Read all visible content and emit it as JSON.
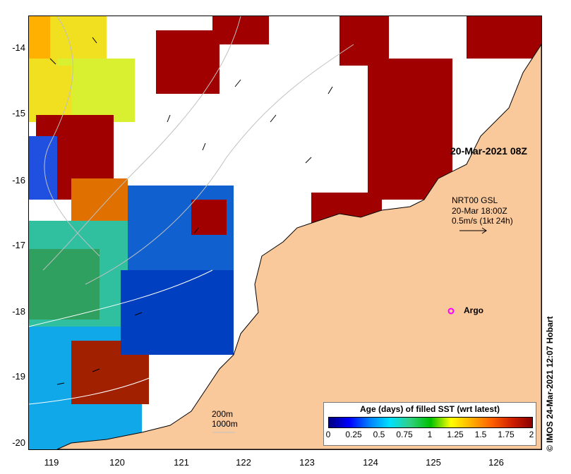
{
  "y_ticks": [
    "-14",
    "-15",
    "-16",
    "-17",
    "-18",
    "-19",
    "-20"
  ],
  "x_ticks": [
    "119",
    "120",
    "121",
    "122",
    "123",
    "124",
    "125",
    "126"
  ],
  "date_label": "20-Mar-2021 08Z",
  "current_label": {
    "line1": "NRT00 GSL",
    "line2": "20-Mar 18:00Z",
    "line3": "0.5m/s (1kt 24h)"
  },
  "argo_label": "Argo",
  "depth_labels": [
    "200m",
    "1000m"
  ],
  "credit": "© IMOS 24-Mar-2021 12:07 Hobart",
  "legend": {
    "title": "Age (days) of filled SST (wrt latest)",
    "ticks": [
      "0",
      "0.25",
      "0.5",
      "0.75",
      "1",
      "1.25",
      "1.5",
      "1.75",
      "2"
    ],
    "colors": [
      "#00007f",
      "#0000ff",
      "#0080ff",
      "#00e0ff",
      "#30d080",
      "#00c000",
      "#ffff00",
      "#ffb000",
      "#ff6000",
      "#d02000",
      "#8b0000"
    ]
  },
  "colors": {
    "land": "#f9c89b",
    "old_sst": "#a00000",
    "argo": "#ff00ff"
  }
}
